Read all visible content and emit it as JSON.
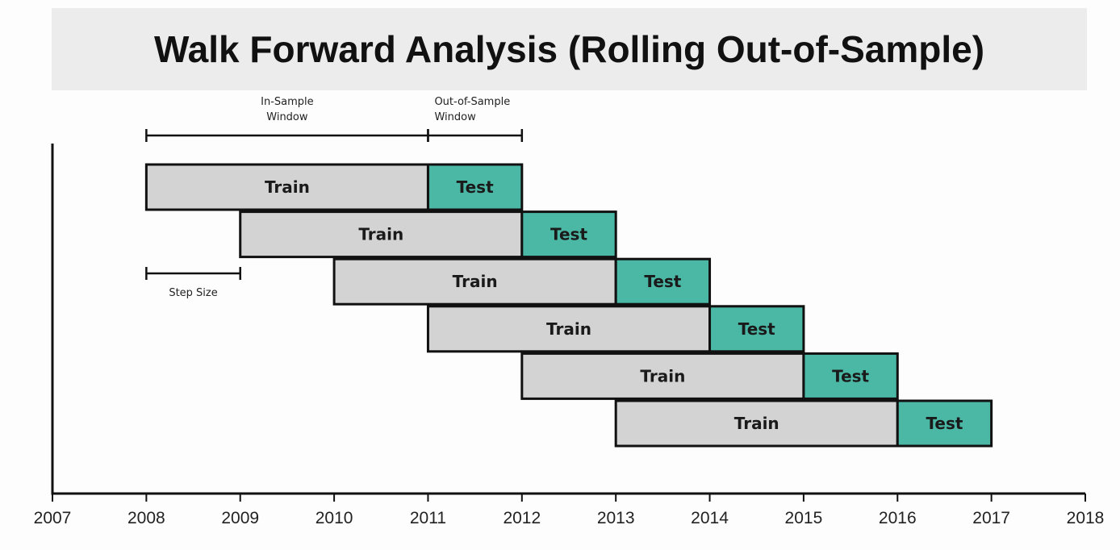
{
  "title": "Walk Forward Analysis (Rolling Out-of-Sample)",
  "colors": {
    "train_fill": "#d3d3d3",
    "test_fill": "#4bb8a6",
    "outline": "#111111",
    "title_band": "#ececec"
  },
  "annotations": {
    "in_sample": {
      "line1": "In-Sample",
      "line2": "Window",
      "start": 2008,
      "end": 2011
    },
    "out_of_sample": {
      "line1": "Out-of-Sample",
      "line2": "Window",
      "start": 2011,
      "end": 2012
    },
    "step_size": {
      "label": "Step Size",
      "start": 2008,
      "end": 2009
    }
  },
  "chart_data": {
    "type": "gantt",
    "x_axis": {
      "ticks": [
        "2007",
        "2008",
        "2009",
        "2010",
        "2011",
        "2012",
        "2013",
        "2014",
        "2015",
        "2016",
        "2017",
        "2018"
      ],
      "range": [
        2007,
        2018
      ]
    },
    "rows": [
      {
        "train_label": "Train",
        "test_label": "Test",
        "train_start": 2008,
        "train_end": 2011,
        "test_start": 2011,
        "test_end": 2012
      },
      {
        "train_label": "Train",
        "test_label": "Test",
        "train_start": 2009,
        "train_end": 2012,
        "test_start": 2012,
        "test_end": 2013
      },
      {
        "train_label": "Train",
        "test_label": "Test",
        "train_start": 2010,
        "train_end": 2013,
        "test_start": 2013,
        "test_end": 2014
      },
      {
        "train_label": "Train",
        "test_label": "Test",
        "train_start": 2011,
        "train_end": 2014,
        "test_start": 2014,
        "test_end": 2015
      },
      {
        "train_label": "Train",
        "test_label": "Test",
        "train_start": 2012,
        "train_end": 2015,
        "test_start": 2015,
        "test_end": 2016
      },
      {
        "train_label": "Train",
        "test_label": "Test",
        "train_start": 2013,
        "train_end": 2016,
        "test_start": 2016,
        "test_end": 2017
      }
    ]
  }
}
